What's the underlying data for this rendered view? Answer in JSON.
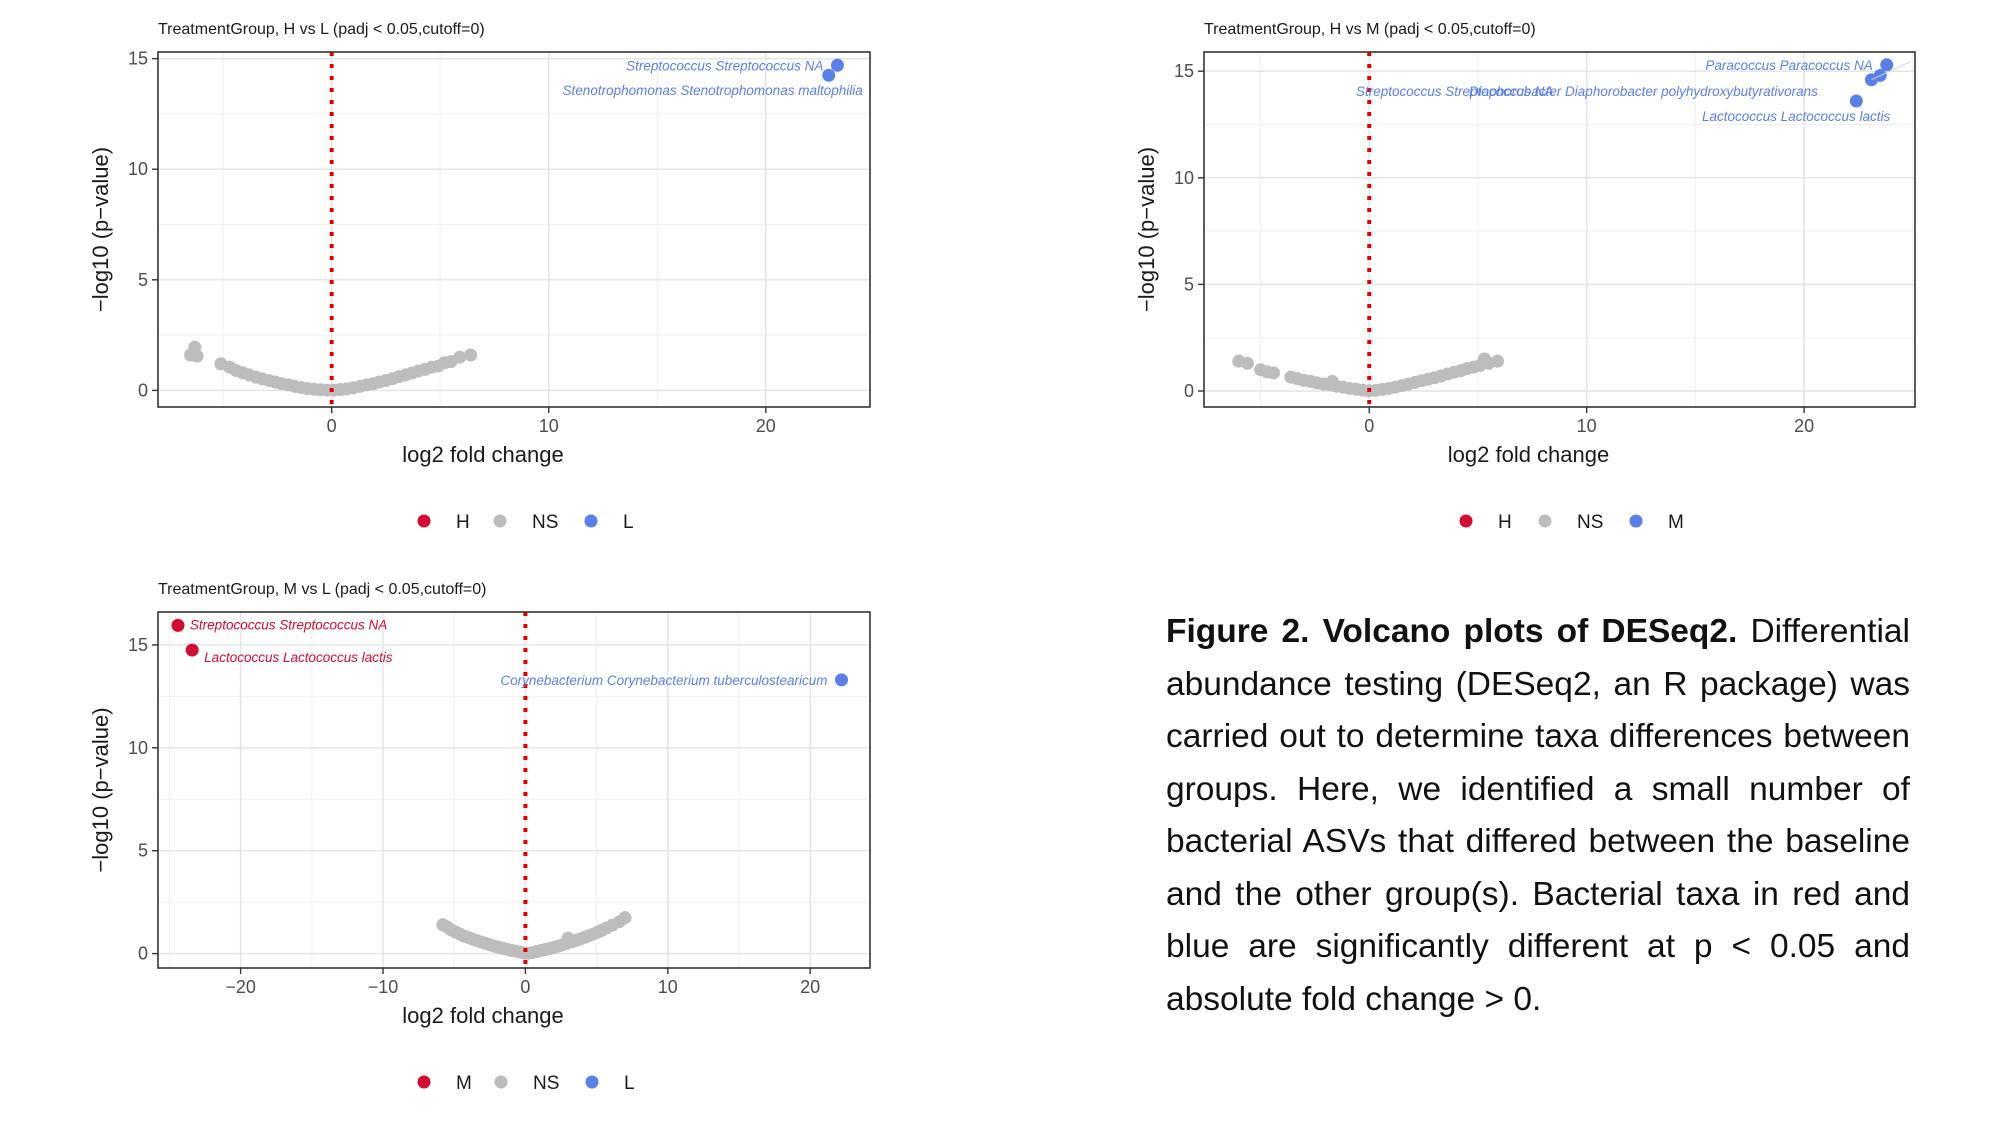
{
  "colors": {
    "up": "#d20d34",
    "ns": "#bdbdbd",
    "down": "#5a7fe6",
    "cutoff": "#e10000"
  },
  "chart_data": [
    {
      "type": "scatter",
      "title": "TreatmentGroup, H vs L (padj < 0.05,cutoff=0)",
      "xlabel": "log2 fold change",
      "ylabel": "−log10 (p−value)",
      "xlim": [
        -8,
        24.8
      ],
      "ylim": [
        -0.75,
        15.3
      ],
      "xticks": [
        0,
        10,
        20
      ],
      "yticks": [
        0,
        5,
        10,
        15
      ],
      "xtick_labels": [
        "0",
        "10",
        "20"
      ],
      "ytick_labels": [
        "0",
        "5",
        "10",
        "15"
      ],
      "grid": true,
      "legend": {
        "position": "bottom",
        "entries": [
          {
            "label": "H",
            "color": "#d20d34"
          },
          {
            "label": "NS",
            "color": "#bdbdbd"
          },
          {
            "label": "L",
            "color": "#5a7fe6"
          }
        ]
      },
      "vline": {
        "x": 0,
        "style": "dotted",
        "color": "#e10000"
      },
      "ns_points": {
        "x": [
          -6.5,
          -6.3,
          -6.2,
          -5.1,
          -4.7,
          -4.4,
          -4.1,
          -3.8,
          -3.5,
          -3.2,
          -2.9,
          -2.6,
          -2.3,
          -2.0,
          -1.7,
          -1.4,
          -1.1,
          -0.8,
          -0.5,
          -0.2,
          0.1,
          0.4,
          0.7,
          1.0,
          1.3,
          1.6,
          1.9,
          2.2,
          2.5,
          2.8,
          3.1,
          3.4,
          3.7,
          4.0,
          4.3,
          4.6,
          4.9,
          5.2,
          5.5,
          5.9,
          6.4
        ],
        "y": [
          1.6,
          1.95,
          1.55,
          1.2,
          1.05,
          0.9,
          0.8,
          0.7,
          0.6,
          0.52,
          0.45,
          0.38,
          0.3,
          0.25,
          0.18,
          0.13,
          0.08,
          0.05,
          0.03,
          0.01,
          0.01,
          0.04,
          0.07,
          0.12,
          0.18,
          0.25,
          0.3,
          0.38,
          0.45,
          0.53,
          0.62,
          0.7,
          0.78,
          0.88,
          0.95,
          1.05,
          1.1,
          1.25,
          1.3,
          1.5,
          1.6
        ]
      },
      "sig_points": [
        {
          "x": 23.3,
          "y": 14.7,
          "group": "down",
          "label": "Streptococcus  Streptococcus NA",
          "label_side": "left"
        },
        {
          "x": 22.9,
          "y": 14.25,
          "group": "down",
          "label": "Stenotrophomonas  Stenotrophomonas maltophilia",
          "label_side": "below"
        }
      ]
    },
    {
      "type": "scatter",
      "title": "TreatmentGroup, H vs M (padj < 0.05,cutoff=0)",
      "xlabel": "log2 fold change",
      "ylabel": "−log10 (p−value)",
      "xlim": [
        -7.6,
        25.1
      ],
      "ylim": [
        -0.75,
        15.9
      ],
      "xticks": [
        0,
        10,
        20
      ],
      "yticks": [
        0,
        5,
        10,
        15
      ],
      "xtick_labels": [
        "0",
        "10",
        "20"
      ],
      "ytick_labels": [
        "0",
        "5",
        "10",
        "15"
      ],
      "grid": true,
      "legend": {
        "position": "bottom",
        "entries": [
          {
            "label": "H",
            "color": "#d20d34"
          },
          {
            "label": "NS",
            "color": "#bdbdbd"
          },
          {
            "label": "M",
            "color": "#5a7fe6"
          }
        ]
      },
      "vline": {
        "x": 0,
        "style": "dotted",
        "color": "#e10000"
      },
      "ns_points": {
        "x": [
          -6.0,
          -5.6,
          -5.0,
          -4.7,
          -4.4,
          -3.6,
          -3.3,
          -3.0,
          -2.7,
          -2.4,
          -2.1,
          -1.8,
          -1.7,
          -1.5,
          -1.2,
          -0.9,
          -0.6,
          -0.3,
          0.0,
          0.3,
          0.6,
          0.9,
          1.2,
          1.5,
          1.8,
          2.1,
          2.4,
          2.7,
          3.0,
          3.3,
          3.6,
          3.9,
          4.2,
          4.5,
          4.8,
          5.1,
          5.3,
          5.5,
          5.9
        ],
        "y": [
          1.4,
          1.3,
          1.0,
          0.9,
          0.85,
          0.65,
          0.58,
          0.5,
          0.45,
          0.38,
          0.32,
          0.3,
          0.45,
          0.22,
          0.18,
          0.12,
          0.08,
          0.04,
          0.01,
          0.03,
          0.07,
          0.12,
          0.18,
          0.25,
          0.32,
          0.4,
          0.48,
          0.55,
          0.62,
          0.7,
          0.8,
          0.88,
          0.95,
          1.05,
          1.12,
          1.2,
          1.5,
          1.3,
          1.4
        ]
      },
      "sig_points": [
        {
          "x": 23.8,
          "y": 15.3,
          "group": "down",
          "label": "Paracoccus  Paracoccus NA",
          "label_side": "left"
        },
        {
          "x": 23.5,
          "y": 14.8,
          "group": "down",
          "label": "Streptococcus  Streptococcus NA",
          "label_side": "none"
        },
        {
          "x": 23.1,
          "y": 14.6,
          "group": "down",
          "label": "Diaphorobacter  Diaphorobacter polyhydroxybutyrativorans",
          "label_side": "none"
        },
        {
          "x": 22.4,
          "y": 13.6,
          "group": "down",
          "label": "Lactococcus  Lactococcus lactis",
          "label_side": "below"
        }
      ],
      "overlap_labels": [
        "Streptococcus  Streptococcus NA",
        "Diaphorobacter  Diaphorobacter polyhydroxybutyrativorans"
      ]
    },
    {
      "type": "scatter",
      "title": "TreatmentGroup, M vs L (padj < 0.05,cutoff=0)",
      "xlabel": "log2 fold change",
      "ylabel": "−log10 (p−value)",
      "xlim": [
        -25.8,
        24.2
      ],
      "ylim": [
        -0.7,
        16.6
      ],
      "xticks": [
        -20,
        -10,
        0,
        10,
        20
      ],
      "yticks": [
        0,
        5,
        10,
        15
      ],
      "xtick_labels": [
        "−20",
        "−10",
        "0",
        "10",
        "20"
      ],
      "ytick_labels": [
        "0",
        "5",
        "10",
        "15"
      ],
      "grid": true,
      "legend": {
        "position": "bottom",
        "entries": [
          {
            "label": "M",
            "color": "#d20d34"
          },
          {
            "label": "NS",
            "color": "#bdbdbd"
          },
          {
            "label": "L",
            "color": "#5a7fe6"
          }
        ]
      },
      "vline": {
        "x": 0,
        "style": "dotted",
        "color": "#e10000"
      },
      "ns_points": {
        "x": [
          -5.8,
          -5.5,
          -5.2,
          -4.9,
          -4.6,
          -4.3,
          -4.0,
          -3.7,
          -3.4,
          -3.1,
          -2.8,
          -2.5,
          -2.2,
          -1.9,
          -1.6,
          -1.3,
          -1.0,
          -0.7,
          -0.4,
          -0.1,
          0.2,
          0.5,
          0.8,
          1.1,
          1.4,
          1.7,
          2.0,
          2.3,
          2.6,
          2.9,
          3.0,
          3.3,
          3.6,
          3.9,
          4.2,
          4.5,
          4.8,
          5.1,
          5.4,
          5.7,
          6.1,
          6.6,
          7.0
        ],
        "y": [
          1.4,
          1.3,
          1.15,
          1.05,
          0.95,
          0.85,
          0.78,
          0.7,
          0.63,
          0.56,
          0.5,
          0.43,
          0.37,
          0.31,
          0.26,
          0.21,
          0.16,
          0.12,
          0.08,
          0.03,
          0.02,
          0.05,
          0.1,
          0.15,
          0.2,
          0.25,
          0.3,
          0.36,
          0.42,
          0.5,
          0.75,
          0.58,
          0.65,
          0.72,
          0.8,
          0.88,
          0.96,
          1.05,
          1.14,
          1.25,
          1.38,
          1.55,
          1.75
        ]
      },
      "sig_points": [
        {
          "x": -24.4,
          "y": 15.95,
          "group": "up",
          "label": "Streptococcus  Streptococcus NA",
          "label_side": "right"
        },
        {
          "x": -23.4,
          "y": 14.75,
          "group": "up",
          "label": "Lactococcus  Lactococcus lactis",
          "label_side": "below-right"
        },
        {
          "x": 22.2,
          "y": 13.3,
          "group": "down",
          "label": "Corynebacterium  Corynebacterium tuberculostearicum",
          "label_side": "left"
        }
      ]
    }
  ],
  "caption": {
    "bold": "Figure 2. Volcano plots of DESeq2.",
    "text": "Differential abundance testing (DESeq2, an R package) was carried out to determine taxa differences between groups. Here, we identified a small number of bacterial ASVs that differed between the baseline and the other group(s). Bacterial taxa in red and blue are significantly different at p < 0.05 and absolute fold change > 0."
  }
}
